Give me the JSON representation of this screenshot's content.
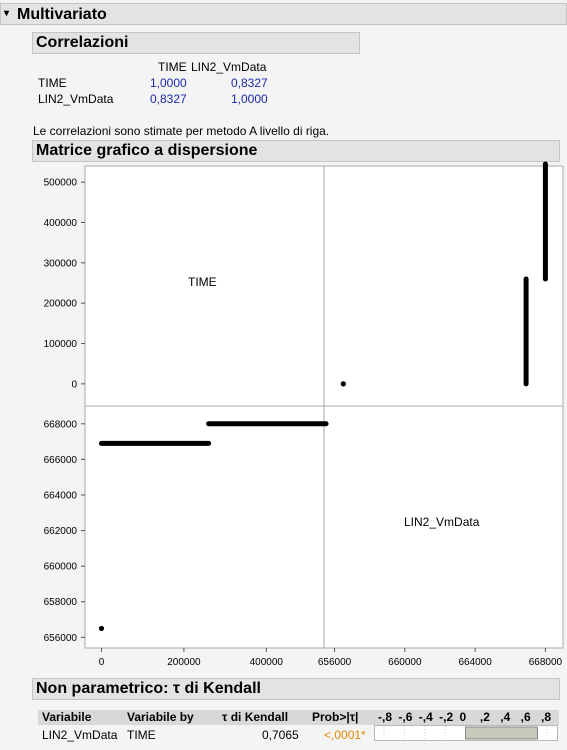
{
  "title": "Multivariato",
  "correlations": {
    "header": "Correlazioni",
    "columns": [
      "TIME",
      "LIN2_VmData"
    ],
    "rows": [
      {
        "label": "TIME",
        "values": [
          "1,0000",
          "0,8327"
        ]
      },
      {
        "label": "LIN2_VmData",
        "values": [
          "0,8327",
          "1,0000"
        ]
      }
    ],
    "note": "Le correlazioni sono stimate per metodo A livello di riga."
  },
  "scatter": {
    "header": "Matrice grafico a dispersione",
    "diag_labels": [
      "TIME",
      "LIN2_VmData"
    ],
    "time_ticks": [
      "500000",
      "400000",
      "300000",
      "200000",
      "100000",
      "0"
    ],
    "lin_ticks": [
      "668000",
      "666000",
      "664000",
      "662000",
      "660000",
      "658000",
      "656000"
    ],
    "x_time_ticks": [
      "0",
      "200000",
      "400000"
    ],
    "x_lin_ticks": [
      "656000",
      "660000",
      "664000",
      "668000"
    ]
  },
  "chart_data": {
    "type": "scatter",
    "title": "Matrice grafico a dispersione",
    "variables": [
      "TIME",
      "LIN2_VmData"
    ],
    "axes": {
      "TIME": [
        -40000,
        540000
      ],
      "LIN2_VmData": [
        655400,
        669000
      ]
    },
    "segments": [
      {
        "time": [
          0,
          0
        ],
        "lin": [
          656500,
          656500
        ]
      },
      {
        "time": [
          0,
          260000
        ],
        "lin": [
          666900,
          666900
        ]
      },
      {
        "time": [
          260000,
          545000
        ],
        "lin": [
          668000,
          668000
        ]
      }
    ]
  },
  "kendall": {
    "header": "Non parametrico: τ di Kendall",
    "columns": [
      "Variabile",
      "Variabile by",
      "τ di Kendall",
      "Prob>|τ|"
    ],
    "bar_ticks": [
      "-,8",
      "-,6",
      "-,4",
      "-,2",
      "0",
      ",2",
      ",4",
      ",6",
      ",8"
    ],
    "row": {
      "var": "LIN2_VmData",
      "by": "TIME",
      "tau": "0,7065",
      "tau_value": 0.7065,
      "prob": "<,0001*"
    },
    "colors": {
      "prob": "#e08a00",
      "bar": "#c8c8bb"
    }
  }
}
